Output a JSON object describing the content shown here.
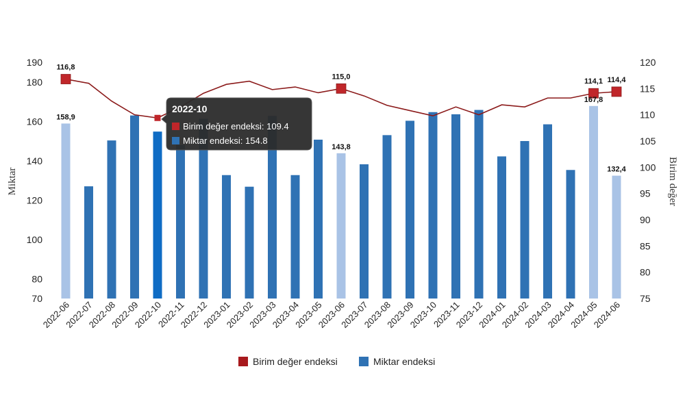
{
  "chart_data": {
    "type": "bar",
    "categories": [
      "2022-06",
      "2022-07",
      "2022-08",
      "2022-09",
      "2022-10",
      "2022-11",
      "2022-12",
      "2023-01",
      "2023-02",
      "2023-03",
      "2023-04",
      "2023-05",
      "2023-06",
      "2023-07",
      "2023-08",
      "2023-09",
      "2023-10",
      "2023-11",
      "2023-12",
      "2024-01",
      "2024-02",
      "2024-03",
      "2024-04",
      "2024-05",
      "2024-06"
    ],
    "series": [
      {
        "name": "Birim değer endeksi",
        "type": "line",
        "axis": "right",
        "values": [
          116.8,
          116.0,
          112.6,
          110.0,
          109.4,
          111.5,
          114.1,
          115.8,
          116.4,
          114.8,
          115.3,
          114.2,
          115.0,
          113.6,
          111.8,
          110.8,
          109.8,
          111.5,
          110.0,
          111.9,
          111.5,
          113.2,
          113.2,
          114.1,
          114.4
        ],
        "color": "#8b1a1a",
        "marker_color": "#c0262a"
      },
      {
        "name": "Miktar endeksi",
        "type": "bar",
        "axis": "left",
        "values": [
          158.9,
          127.0,
          150.3,
          163.0,
          154.8,
          148.0,
          161.3,
          132.7,
          126.8,
          162.8,
          132.7,
          150.7,
          143.8,
          138.2,
          153.0,
          160.3,
          164.7,
          163.6,
          165.8,
          142.2,
          150.0,
          158.5,
          135.3,
          167.8,
          132.4
        ],
        "color": "#2f72b4",
        "highlight_color": "#a9c3e6",
        "active_color": "#0f6cc4"
      }
    ],
    "highlighted_indices": [
      0,
      12,
      23,
      24
    ],
    "active_index": 4,
    "bar_labels": [
      {
        "index": 0,
        "text": "158,9"
      },
      {
        "index": 12,
        "text": "143,8"
      },
      {
        "index": 23,
        "text": "167,8"
      },
      {
        "index": 24,
        "text": "132,4"
      }
    ],
    "line_labels": [
      {
        "index": 0,
        "text": "116,8"
      },
      {
        "index": 12,
        "text": "115,0"
      },
      {
        "index": 23,
        "text": "114,1"
      },
      {
        "index": 24,
        "text": "114,4"
      }
    ],
    "ylabel": "Miktar",
    "y2label": "Birim değer",
    "ylim": [
      70,
      190
    ],
    "y2lim": [
      75,
      120
    ],
    "yticks": [
      70,
      80,
      100,
      120,
      140,
      160,
      180,
      190
    ],
    "y2ticks": [
      75,
      80,
      85,
      90,
      95,
      100,
      105,
      110,
      115,
      120
    ],
    "legend_position": "bottom-center",
    "grid": false,
    "tooltip": {
      "title": "2022-10",
      "line1": "Birim değer endeksi: 109.4",
      "line2": "Miktar endeksi: 154.8"
    }
  }
}
